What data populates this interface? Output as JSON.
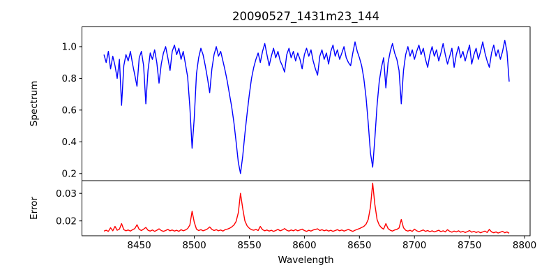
{
  "chart_data": {
    "type": "line",
    "title": "20090527_1431m23_144",
    "xlabel": "Wavelength",
    "legend": "none",
    "grid": false,
    "x_start": 8418,
    "x_step": 2,
    "xlim": [
      8398,
      8805
    ],
    "x_ticks": [
      8450,
      8500,
      8550,
      8600,
      8650,
      8700,
      8750,
      8800
    ],
    "x_tick_labels": [
      "8450",
      "8500",
      "8550",
      "8600",
      "8650",
      "8700",
      "8750",
      "8800"
    ],
    "text_color": "#000000",
    "spine_color": "#000000",
    "subplots": [
      {
        "name": "spectrum",
        "ylabel": "Spectrum",
        "ylim": [
          0.155,
          1.125
        ],
        "y_ticks": [
          1.0,
          0.8,
          0.6,
          0.4,
          0.2
        ],
        "y_tick_labels": [
          "1.0",
          "0.8",
          "0.6",
          "0.4",
          "0.2"
        ],
        "color": "#0000ff",
        "absorption_line_centers": [
          8434,
          8457,
          8468,
          8498,
          8514,
          8542,
          8662,
          8674,
          8688
        ],
        "values": [
          0.95,
          0.9,
          0.97,
          0.86,
          0.94,
          0.88,
          0.8,
          0.92,
          0.63,
          0.88,
          0.95,
          0.91,
          0.97,
          0.89,
          0.82,
          0.75,
          0.93,
          0.97,
          0.88,
          0.64,
          0.85,
          0.96,
          0.92,
          0.98,
          0.9,
          0.77,
          0.89,
          0.96,
          1.0,
          0.93,
          0.85,
          0.97,
          1.01,
          0.95,
          0.99,
          0.92,
          0.97,
          0.89,
          0.81,
          0.62,
          0.36,
          0.55,
          0.83,
          0.93,
          0.99,
          0.95,
          0.88,
          0.8,
          0.71,
          0.86,
          0.95,
          1.0,
          0.94,
          0.97,
          0.91,
          0.85,
          0.78,
          0.7,
          0.62,
          0.52,
          0.4,
          0.27,
          0.2,
          0.31,
          0.45,
          0.58,
          0.7,
          0.8,
          0.87,
          0.92,
          0.96,
          0.9,
          0.97,
          1.02,
          0.95,
          0.88,
          0.94,
          0.99,
          0.93,
          0.97,
          0.91,
          0.88,
          0.84,
          0.95,
          0.99,
          0.93,
          0.97,
          0.91,
          0.96,
          0.92,
          0.86,
          0.95,
          0.99,
          0.94,
          0.98,
          0.91,
          0.86,
          0.82,
          0.94,
          0.98,
          0.92,
          0.96,
          0.89,
          0.97,
          1.01,
          0.94,
          0.98,
          0.92,
          0.96,
          1.0,
          0.93,
          0.9,
          0.88,
          0.96,
          1.03,
          0.97,
          0.93,
          0.88,
          0.8,
          0.68,
          0.52,
          0.33,
          0.24,
          0.42,
          0.63,
          0.78,
          0.87,
          0.93,
          0.74,
          0.9,
          0.97,
          1.02,
          0.96,
          0.92,
          0.85,
          0.64,
          0.85,
          0.95,
          1.0,
          0.94,
          0.98,
          0.92,
          0.97,
          1.01,
          0.95,
          0.99,
          0.92,
          0.87,
          0.95,
          1.0,
          0.94,
          0.98,
          0.91,
          0.96,
          1.02,
          0.95,
          0.89,
          0.94,
          0.99,
          0.87,
          0.95,
          1.0,
          0.93,
          0.97,
          0.91,
          0.96,
          1.01,
          0.89,
          0.95,
          0.99,
          0.92,
          0.97,
          1.03,
          0.96,
          0.91,
          0.87,
          0.96,
          1.01,
          0.94,
          0.98,
          0.92,
          0.97,
          1.04,
          0.97,
          0.78
        ]
      },
      {
        "name": "error",
        "ylabel": "Error",
        "ylim": [
          0.0146,
          0.0346
        ],
        "y_ticks": [
          0.03,
          0.02
        ],
        "y_tick_labels": [
          "0.03",
          "0.02"
        ],
        "color": "#ff0000",
        "peak_centers": [
          8434,
          8498,
          8542,
          8662,
          8688
        ],
        "values": [
          0.0163,
          0.0166,
          0.0162,
          0.0175,
          0.0164,
          0.018,
          0.0166,
          0.017,
          0.019,
          0.0168,
          0.0164,
          0.0167,
          0.0163,
          0.0168,
          0.0172,
          0.0186,
          0.0169,
          0.0165,
          0.017,
          0.0176,
          0.0166,
          0.0163,
          0.0167,
          0.0162,
          0.0166,
          0.0171,
          0.0165,
          0.0162,
          0.0165,
          0.0169,
          0.0164,
          0.0167,
          0.0163,
          0.0166,
          0.0162,
          0.0168,
          0.0164,
          0.0167,
          0.0172,
          0.0185,
          0.0235,
          0.0195,
          0.017,
          0.0165,
          0.0168,
          0.0164,
          0.0167,
          0.0171,
          0.0178,
          0.0169,
          0.0165,
          0.0168,
          0.0164,
          0.0167,
          0.0163,
          0.0168,
          0.017,
          0.0173,
          0.0178,
          0.0185,
          0.0198,
          0.023,
          0.03,
          0.0245,
          0.02,
          0.0182,
          0.0173,
          0.0168,
          0.0166,
          0.0169,
          0.0165,
          0.018,
          0.0168,
          0.0164,
          0.0167,
          0.0163,
          0.0166,
          0.0162,
          0.0165,
          0.0169,
          0.0164,
          0.0167,
          0.0172,
          0.0166,
          0.0163,
          0.0167,
          0.0164,
          0.0168,
          0.0164,
          0.0167,
          0.017,
          0.0165,
          0.0162,
          0.0166,
          0.0163,
          0.0167,
          0.0169,
          0.0171,
          0.0165,
          0.0168,
          0.0164,
          0.0167,
          0.0163,
          0.0166,
          0.0162,
          0.0165,
          0.0168,
          0.0164,
          0.0167,
          0.0163,
          0.0166,
          0.0169,
          0.0165,
          0.0162,
          0.0166,
          0.0169,
          0.0172,
          0.0176,
          0.018,
          0.0188,
          0.0205,
          0.025,
          0.0337,
          0.026,
          0.0205,
          0.0185,
          0.0175,
          0.017,
          0.019,
          0.0172,
          0.0166,
          0.0163,
          0.0167,
          0.0169,
          0.0174,
          0.0205,
          0.0175,
          0.0166,
          0.0163,
          0.0166,
          0.0162,
          0.017,
          0.0164,
          0.0161,
          0.0164,
          0.0167,
          0.0162,
          0.0165,
          0.0161,
          0.0164,
          0.016,
          0.0163,
          0.0166,
          0.0161,
          0.0164,
          0.016,
          0.0168,
          0.0162,
          0.0159,
          0.0163,
          0.016,
          0.0164,
          0.0159,
          0.0162,
          0.0158,
          0.0161,
          0.0165,
          0.0159,
          0.0162,
          0.0158,
          0.0161,
          0.0157,
          0.016,
          0.0163,
          0.0158,
          0.0169,
          0.016,
          0.0157,
          0.016,
          0.0156,
          0.0159,
          0.0162,
          0.0157,
          0.016,
          0.0155
        ]
      }
    ]
  }
}
